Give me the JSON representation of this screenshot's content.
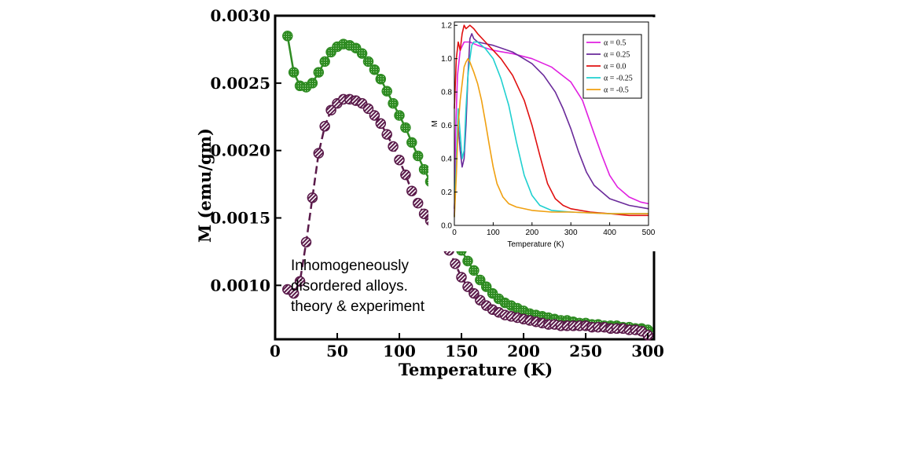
{
  "chart_data": [
    {
      "type": "scatter",
      "xlabel": "Temperature (K)",
      "ylabel": "M (emu/gm)",
      "xlim": [
        0,
        305
      ],
      "ylim": [
        0.0006,
        0.003
      ],
      "x_ticks": [
        "0",
        "50",
        "100",
        "150",
        "200",
        "250",
        "300"
      ],
      "y_ticks": [
        "0.0010",
        "0.0015",
        "0.0020",
        "0.0025",
        "0.0030"
      ],
      "annotation": [
        "Inhomogeneously",
        "disordered alloys.",
        "theory & experiment"
      ],
      "series": [
        {
          "color": "#2e8b22",
          "style": "solid line with filled circle markers",
          "x": [
            10,
            15,
            20,
            25,
            30,
            35,
            40,
            45,
            50,
            55,
            60,
            65,
            70,
            75,
            80,
            85,
            90,
            95,
            100,
            105,
            110,
            115,
            120,
            125,
            150,
            155,
            160,
            165,
            170,
            175,
            180,
            185,
            190,
            195,
            200,
            205,
            210,
            215,
            220,
            225,
            230,
            235,
            240,
            245,
            250,
            255,
            260,
            265,
            270,
            275,
            280,
            285,
            290,
            295,
            300
          ],
          "y": [
            0.00285,
            0.00258,
            0.00248,
            0.00247,
            0.0025,
            0.00258,
            0.00266,
            0.00273,
            0.00277,
            0.00279,
            0.00278,
            0.00276,
            0.00272,
            0.00266,
            0.0026,
            0.00253,
            0.00244,
            0.00235,
            0.00226,
            0.00217,
            0.00206,
            0.00196,
            0.00186,
            0.00177,
            0.00126,
            0.00118,
            0.00111,
            0.00104,
            0.00099,
            0.00094,
            0.0009,
            0.00087,
            0.00085,
            0.00083,
            0.00081,
            0.00079,
            0.00078,
            0.00077,
            0.00076,
            0.00075,
            0.00074,
            0.00074,
            0.00073,
            0.00072,
            0.00072,
            0.00071,
            0.00071,
            0.0007,
            0.0007,
            0.0007,
            0.00069,
            0.00069,
            0.00068,
            0.00068,
            0.00067
          ]
        },
        {
          "color": "#5a1a4a",
          "style": "dashed line with hatched circle markers",
          "x": [
            10,
            15,
            20,
            25,
            30,
            35,
            40,
            45,
            50,
            55,
            60,
            65,
            70,
            75,
            80,
            85,
            90,
            95,
            100,
            105,
            110,
            115,
            120,
            125,
            140,
            145,
            150,
            155,
            160,
            165,
            170,
            175,
            180,
            185,
            190,
            195,
            200,
            205,
            210,
            215,
            220,
            225,
            230,
            235,
            240,
            245,
            250,
            255,
            260,
            265,
            270,
            275,
            280,
            285,
            290,
            295,
            300
          ],
          "y": [
            0.00097,
            0.00094,
            0.00103,
            0.00132,
            0.00165,
            0.00198,
            0.00218,
            0.0023,
            0.00235,
            0.00238,
            0.00238,
            0.00237,
            0.00235,
            0.00231,
            0.00226,
            0.0022,
            0.00212,
            0.00203,
            0.00193,
            0.00182,
            0.0017,
            0.00161,
            0.00153,
            0.00148,
            0.00126,
            0.00116,
            0.00106,
            0.00099,
            0.00094,
            0.00089,
            0.00085,
            0.00082,
            0.0008,
            0.00078,
            0.00077,
            0.00076,
            0.00075,
            0.00074,
            0.00073,
            0.00072,
            0.00071,
            0.00071,
            0.0007,
            0.0007,
            0.0007,
            0.0007,
            0.0007,
            0.00069,
            0.00069,
            0.00069,
            0.00068,
            0.00068,
            0.00068,
            0.00067,
            0.00067,
            0.00066,
            0.00063
          ]
        }
      ]
    },
    {
      "type": "line",
      "xlabel": "Temperature (K)",
      "ylabel": "M",
      "xlim": [
        0,
        500
      ],
      "ylim": [
        0,
        1.22
      ],
      "x_ticks": [
        "0",
        "100",
        "200",
        "300",
        "400",
        "500"
      ],
      "y_ticks": [
        "0.0",
        "0.2",
        "0.4",
        "0.6",
        "0.8",
        "1.0",
        "1.2"
      ],
      "legend_position": "top-right",
      "series": [
        {
          "name": "α = 0.5",
          "color": "#e020e0",
          "x": [
            0,
            3,
            8,
            15,
            25,
            40,
            60,
            100,
            150,
            200,
            250,
            300,
            330,
            360,
            380,
            400,
            420,
            450,
            480,
            500
          ],
          "y": [
            0.05,
            0.55,
            0.9,
            1.05,
            1.1,
            1.1,
            1.08,
            1.05,
            1.03,
            1.0,
            0.95,
            0.86,
            0.75,
            0.55,
            0.42,
            0.3,
            0.23,
            0.17,
            0.14,
            0.13
          ]
        },
        {
          "name": "α = 0.25",
          "color": "#6a2a9a",
          "x": [
            0,
            5,
            10,
            15,
            20,
            25,
            30,
            35,
            40,
            45,
            50,
            60,
            80,
            100,
            150,
            200,
            230,
            260,
            280,
            300,
            320,
            340,
            360,
            400,
            450,
            500
          ],
          "y": [
            0.1,
            0.4,
            0.6,
            0.45,
            0.35,
            0.4,
            0.6,
            0.9,
            1.12,
            1.15,
            1.12,
            1.1,
            1.09,
            1.08,
            1.04,
            0.97,
            0.9,
            0.8,
            0.7,
            0.58,
            0.44,
            0.32,
            0.24,
            0.16,
            0.12,
            0.1
          ]
        },
        {
          "name": "α = 0.0",
          "color": "#e01010",
          "x": [
            0,
            5,
            10,
            15,
            20,
            25,
            30,
            40,
            50,
            60,
            80,
            100,
            120,
            150,
            180,
            200,
            220,
            240,
            260,
            280,
            300,
            350,
            400,
            450,
            500
          ],
          "y": [
            0.7,
            1.0,
            1.1,
            1.05,
            1.15,
            1.2,
            1.18,
            1.2,
            1.18,
            1.15,
            1.1,
            1.05,
            1.0,
            0.9,
            0.75,
            0.6,
            0.42,
            0.25,
            0.16,
            0.12,
            0.1,
            0.08,
            0.07,
            0.06,
            0.06
          ]
        },
        {
          "name": "α = -0.25",
          "color": "#20d0d0",
          "x": [
            0,
            5,
            10,
            15,
            20,
            25,
            30,
            35,
            40,
            45,
            50,
            60,
            80,
            100,
            120,
            140,
            160,
            180,
            200,
            220,
            250,
            300,
            400,
            500
          ],
          "y": [
            0.05,
            0.4,
            0.7,
            0.55,
            0.4,
            0.45,
            0.7,
            0.9,
            1.0,
            1.08,
            1.1,
            1.1,
            1.06,
            1.0,
            0.88,
            0.72,
            0.5,
            0.3,
            0.18,
            0.12,
            0.09,
            0.08,
            0.07,
            0.07
          ]
        },
        {
          "name": "α = -0.5",
          "color": "#f0a010",
          "x": [
            0,
            5,
            10,
            15,
            20,
            25,
            30,
            35,
            40,
            45,
            50,
            60,
            70,
            80,
            90,
            100,
            110,
            125,
            140,
            160,
            200,
            250,
            300,
            400,
            500
          ],
          "y": [
            0.05,
            0.3,
            0.6,
            0.75,
            0.85,
            0.95,
            0.98,
            1.0,
            0.98,
            0.95,
            0.92,
            0.85,
            0.75,
            0.62,
            0.48,
            0.35,
            0.25,
            0.17,
            0.13,
            0.11,
            0.09,
            0.08,
            0.08,
            0.07,
            0.07
          ]
        }
      ]
    }
  ]
}
